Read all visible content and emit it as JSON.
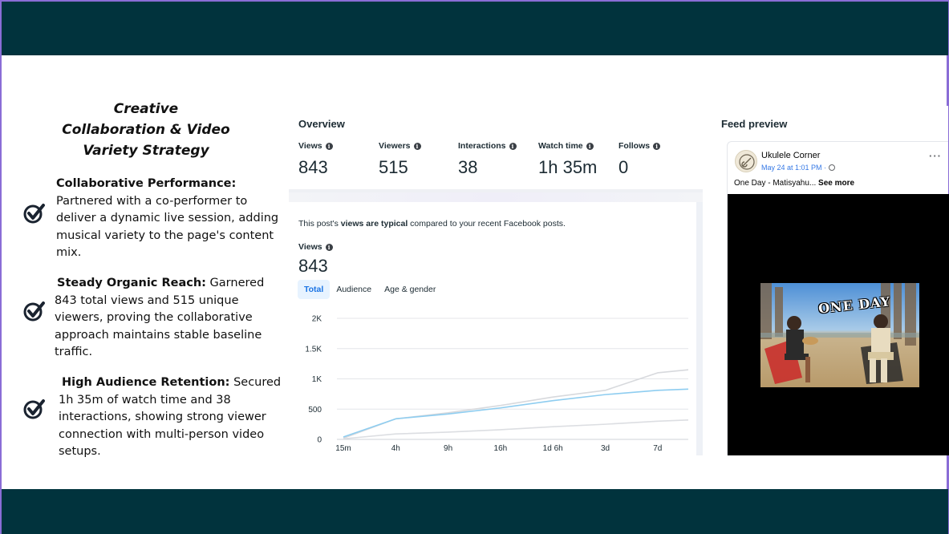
{
  "slide": {
    "title_lines": [
      "Creative",
      "Collaboration & Video",
      "Variety Strategy"
    ],
    "points": [
      {
        "bold": "Collaborative Performance:",
        "text": " Partnered with a co-performer to deliver a dynamic live session, adding musical variety to the page's content mix."
      },
      {
        "bold": "Steady Organic Reach:",
        "text": " Garnered 843 total views and 515 unique viewers, proving the collaborative approach maintains stable baseline traffic."
      },
      {
        "bold": "High Audience Retention:",
        "text": " Secured 1h 35m of watch time and 38 interactions, showing strong viewer connection with multi-person video setups."
      }
    ]
  },
  "overview": {
    "title": "Overview",
    "metrics": [
      {
        "label": "Views",
        "value": "843"
      },
      {
        "label": "Viewers",
        "value": "515"
      },
      {
        "label": "Interactions",
        "value": "38"
      },
      {
        "label": "Watch time",
        "value": "1h 35m"
      },
      {
        "label": "Follows",
        "value": "0"
      }
    ]
  },
  "insight": {
    "note_prefix": "This post's ",
    "note_bold": "views are typical",
    "note_suffix": " compared to your recent Facebook posts.",
    "views_label": "Views",
    "views_value": "843",
    "tabs": [
      "Total",
      "Audience",
      "Age & gender"
    ],
    "active_tab": "Total"
  },
  "chart_data": {
    "type": "line",
    "x": [
      "15m",
      "4h",
      "9h",
      "16h",
      "1d 6h",
      "3d",
      "7d"
    ],
    "ylim": [
      0,
      2000
    ],
    "yticks": [
      "0",
      "500",
      "1K",
      "1.5K",
      "2K"
    ],
    "series": [
      {
        "values": [
          20,
          340,
          440,
          560,
          700,
          810,
          1100
        ],
        "color": "#d7d9dd"
      },
      {
        "values": [
          40,
          340,
          420,
          520,
          640,
          740,
          810
        ],
        "color": "#8ecdf0"
      },
      {
        "values": [
          10,
          90,
          120,
          160,
          210,
          250,
          300
        ],
        "color": "#dcdee2"
      }
    ],
    "series_end": [
      1150,
      830,
      320
    ]
  },
  "feed": {
    "title": "Feed preview",
    "page_name": "Ukulele Corner",
    "date": "May 24 at 1:01 PM · ",
    "caption": "One Day - Matisyahu... ",
    "see_more": "See more",
    "more_icon": "···",
    "video_title": "ONE DAY"
  },
  "colors": {
    "bar": "#01333d",
    "accent": "#1b74e4",
    "line_light": "#8ecdf0"
  }
}
